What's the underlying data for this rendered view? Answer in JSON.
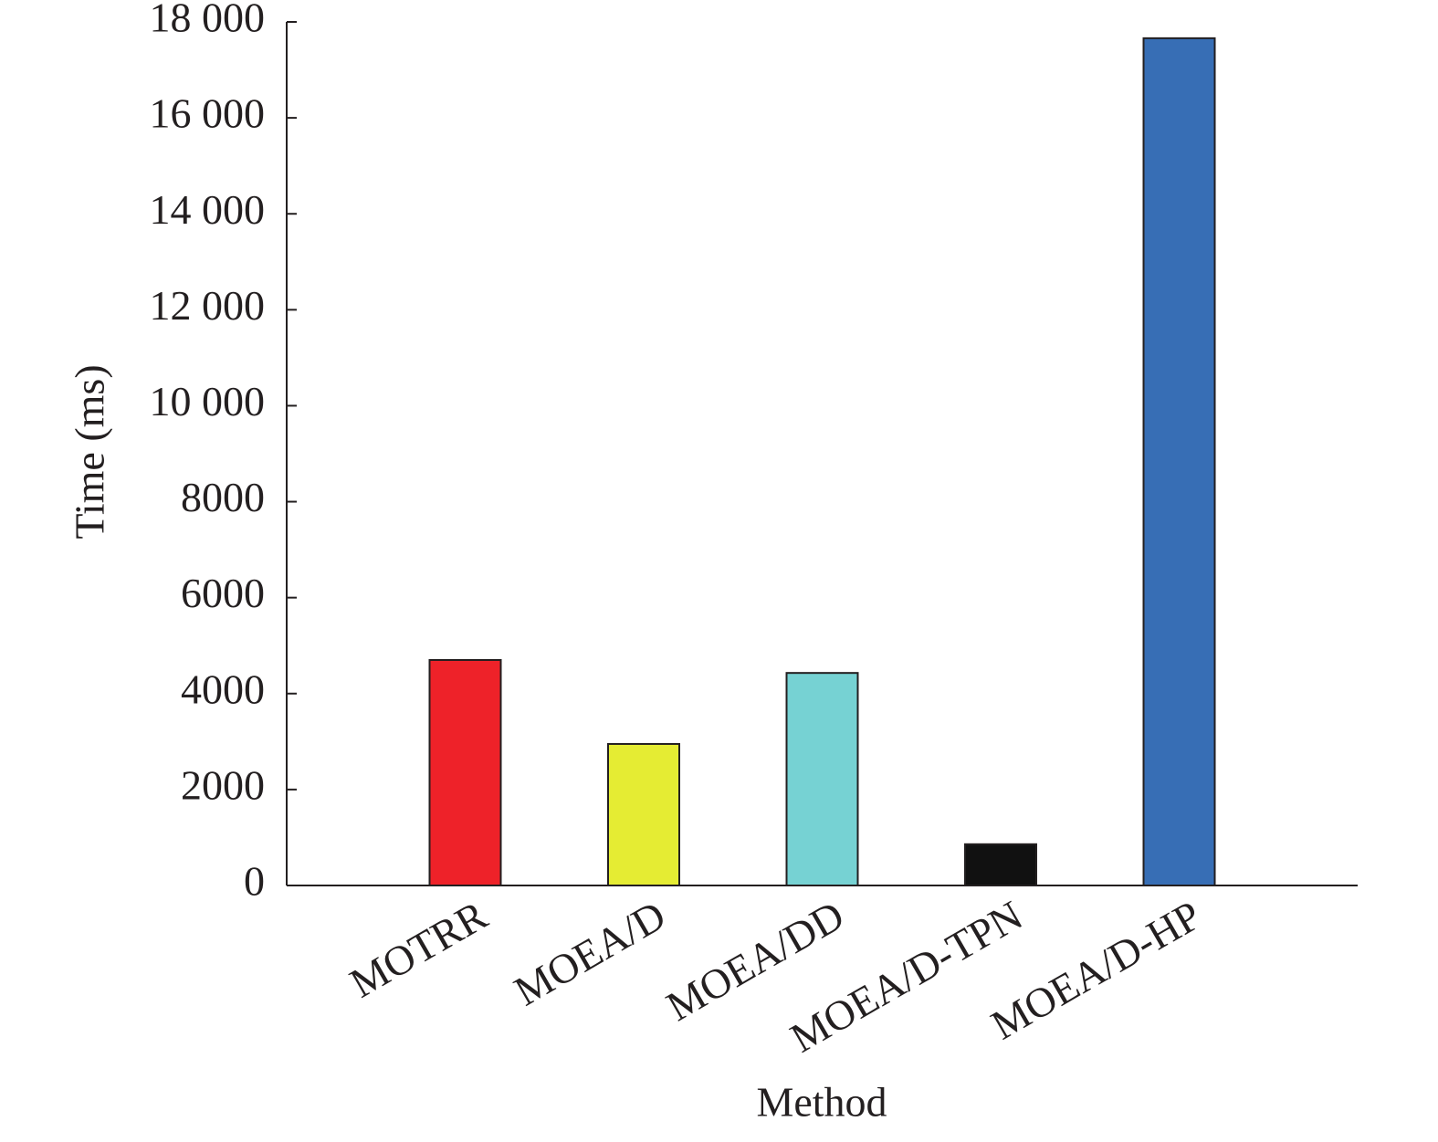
{
  "chart_data": {
    "type": "bar",
    "x_label": "Method",
    "y_label": "Time (ms)",
    "categories": [
      "MOTRR",
      "MOEA/D",
      "MOEA/DD",
      "MOEA/D-TPN",
      "MOEA/D-HP"
    ],
    "values": [
      4700,
      2950,
      4430,
      860,
      17660
    ],
    "colors": [
      "#ee2229",
      "#e5ec33",
      "#76d2d3",
      "#111111",
      "#376eb5"
    ],
    "ylim": [
      0,
      18000
    ],
    "yticks": [
      0,
      2000,
      4000,
      6000,
      8000,
      {
        "value": 10000,
        "label": "10 000"
      },
      {
        "value": 12000,
        "label": "12 000"
      },
      {
        "value": 14000,
        "label": "14 000"
      },
      {
        "value": 16000,
        "label": "16 000"
      },
      {
        "value": 18000,
        "label": "18 000"
      }
    ],
    "grid": false
  }
}
